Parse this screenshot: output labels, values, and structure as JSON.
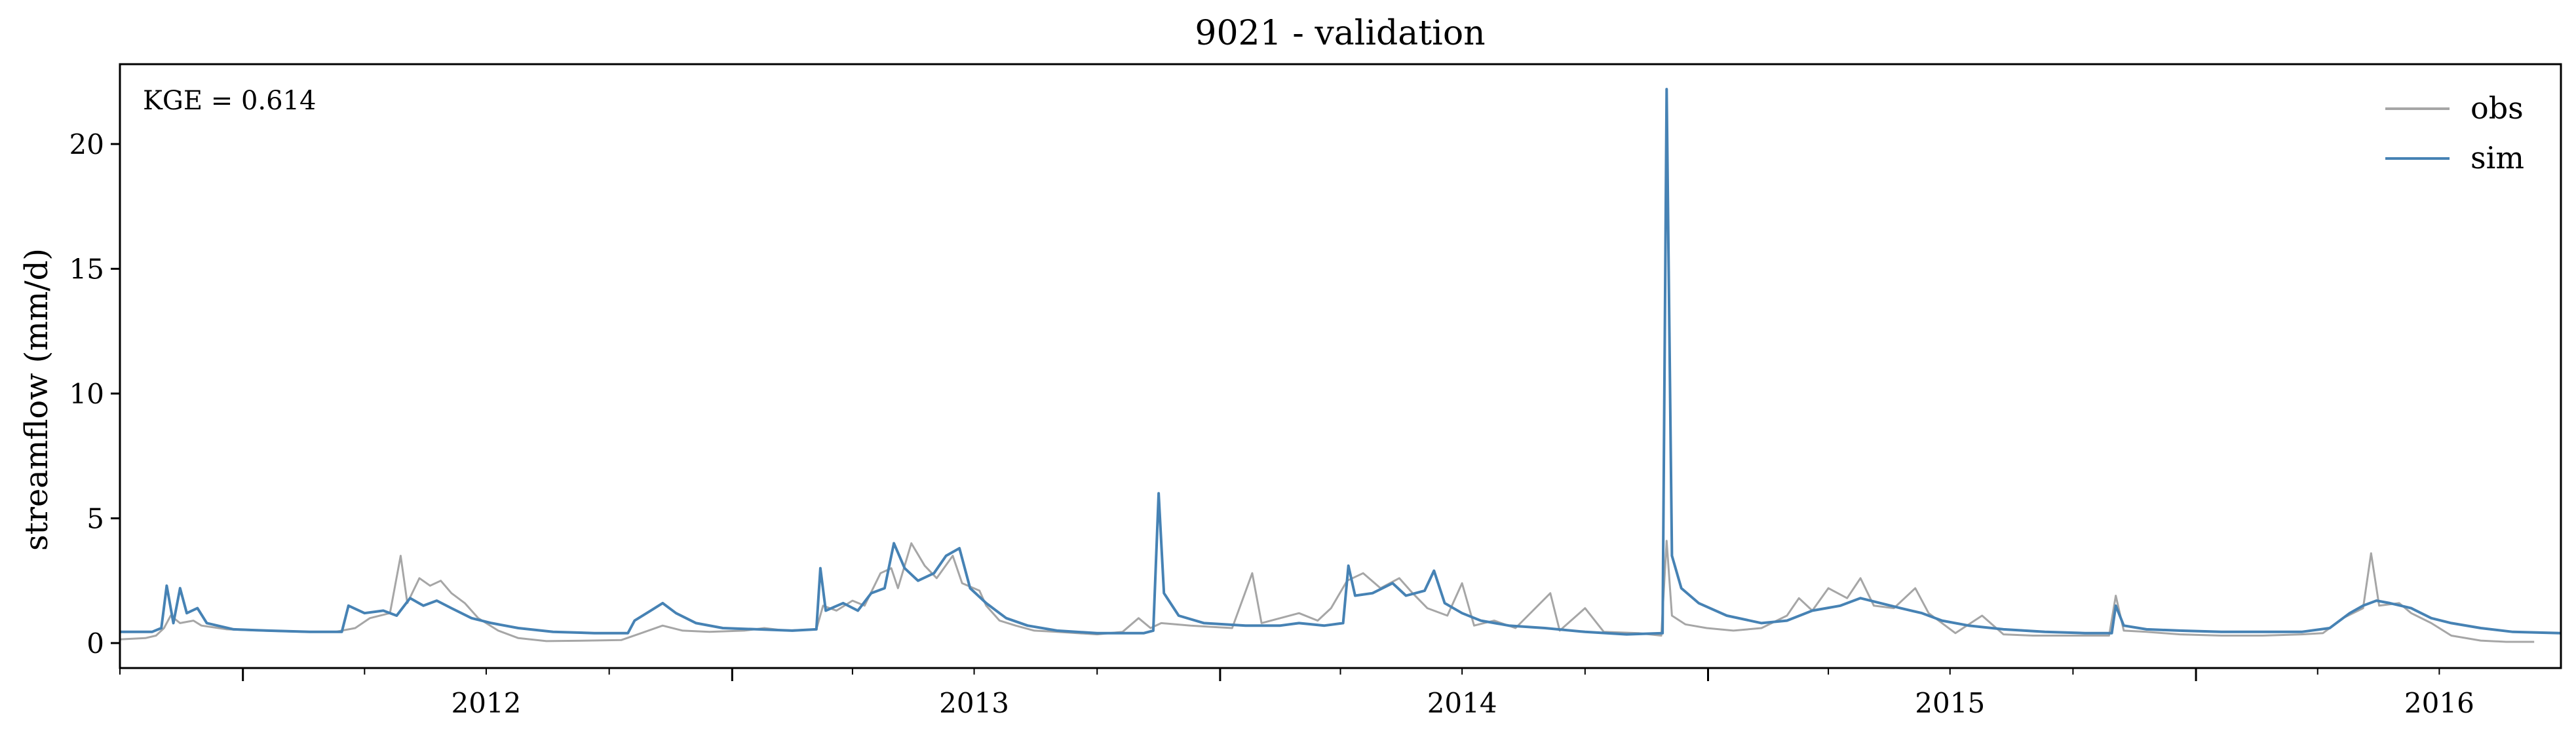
{
  "chart_data": {
    "type": "line",
    "title": "9021 - validation",
    "xlabel": "",
    "ylabel": "streamflow (mm/d)",
    "annotation": "KGE = 0.614",
    "xlim": [
      "2011-10-01",
      "2016-09-30"
    ],
    "ylim": [
      -1.0,
      23.2
    ],
    "x_ticks": [
      "2012",
      "2013",
      "2014",
      "2015",
      "2016"
    ],
    "y_ticks": [
      0,
      5,
      10,
      15,
      20
    ],
    "grid": false,
    "legend_position": "top-right",
    "colors": {
      "obs": "#a6a6a6",
      "sim": "#4682b4"
    },
    "series": [
      {
        "name": "obs",
        "color": "#a6a6a6",
        "points": [
          [
            "2011-10-01",
            0.15
          ],
          [
            "2011-10-20",
            0.2
          ],
          [
            "2011-10-28",
            0.3
          ],
          [
            "2011-11-03",
            0.6
          ],
          [
            "2011-11-08",
            1.1
          ],
          [
            "2011-11-15",
            0.8
          ],
          [
            "2011-11-25",
            0.9
          ],
          [
            "2011-12-01",
            0.7
          ],
          [
            "2011-12-20",
            0.55
          ],
          [
            "2012-01-15",
            0.5
          ],
          [
            "2012-02-15",
            0.45
          ],
          [
            "2012-03-10",
            0.45
          ],
          [
            "2012-03-25",
            0.6
          ],
          [
            "2012-04-05",
            1.0
          ],
          [
            "2012-04-20",
            1.2
          ],
          [
            "2012-04-28",
            3.5
          ],
          [
            "2012-05-03",
            1.6
          ],
          [
            "2012-05-12",
            2.6
          ],
          [
            "2012-05-20",
            2.3
          ],
          [
            "2012-05-28",
            2.5
          ],
          [
            "2012-06-05",
            2.0
          ],
          [
            "2012-06-15",
            1.6
          ],
          [
            "2012-06-25",
            1.0
          ],
          [
            "2012-07-10",
            0.5
          ],
          [
            "2012-07-25",
            0.2
          ],
          [
            "2012-08-15",
            0.08
          ],
          [
            "2012-09-15",
            0.1
          ],
          [
            "2012-10-10",
            0.12
          ],
          [
            "2012-10-25",
            0.4
          ],
          [
            "2012-11-10",
            0.7
          ],
          [
            "2012-11-25",
            0.5
          ],
          [
            "2012-12-15",
            0.45
          ],
          [
            "2013-01-10",
            0.5
          ],
          [
            "2013-01-25",
            0.6
          ],
          [
            "2013-02-10",
            0.5
          ],
          [
            "2013-03-05",
            0.55
          ],
          [
            "2013-03-10",
            1.5
          ],
          [
            "2013-03-20",
            1.3
          ],
          [
            "2013-04-01",
            1.7
          ],
          [
            "2013-04-10",
            1.5
          ],
          [
            "2013-04-22",
            2.8
          ],
          [
            "2013-04-30",
            3.0
          ],
          [
            "2013-05-05",
            2.2
          ],
          [
            "2013-05-15",
            4.0
          ],
          [
            "2013-05-25",
            3.1
          ],
          [
            "2013-06-03",
            2.6
          ],
          [
            "2013-06-15",
            3.5
          ],
          [
            "2013-06-22",
            2.4
          ],
          [
            "2013-07-05",
            2.1
          ],
          [
            "2013-07-10",
            1.5
          ],
          [
            "2013-07-20",
            0.9
          ],
          [
            "2013-08-01",
            0.7
          ],
          [
            "2013-08-15",
            0.5
          ],
          [
            "2013-09-01",
            0.45
          ],
          [
            "2013-10-01",
            0.35
          ],
          [
            "2013-10-20",
            0.45
          ],
          [
            "2013-11-01",
            1.0
          ],
          [
            "2013-11-10",
            0.6
          ],
          [
            "2013-11-18",
            0.8
          ],
          [
            "2013-12-10",
            0.7
          ],
          [
            "2014-01-10",
            0.6
          ],
          [
            "2014-01-25",
            2.8
          ],
          [
            "2014-02-01",
            0.8
          ],
          [
            "2014-02-15",
            1.0
          ],
          [
            "2014-03-01",
            1.2
          ],
          [
            "2014-03-15",
            0.9
          ],
          [
            "2014-03-25",
            1.4
          ],
          [
            "2014-04-06",
            2.5
          ],
          [
            "2014-04-18",
            2.8
          ],
          [
            "2014-05-01",
            2.2
          ],
          [
            "2014-05-15",
            2.6
          ],
          [
            "2014-05-25",
            2.0
          ],
          [
            "2014-06-05",
            1.4
          ],
          [
            "2014-06-20",
            1.1
          ],
          [
            "2014-07-01",
            2.4
          ],
          [
            "2014-07-10",
            0.7
          ],
          [
            "2014-07-25",
            0.9
          ],
          [
            "2014-08-10",
            0.6
          ],
          [
            "2014-09-05",
            2.0
          ],
          [
            "2014-09-12",
            0.5
          ],
          [
            "2014-10-01",
            1.4
          ],
          [
            "2014-10-15",
            0.45
          ],
          [
            "2014-11-10",
            0.4
          ],
          [
            "2014-11-27",
            0.3
          ],
          [
            "2014-12-01",
            4.1
          ],
          [
            "2014-12-05",
            1.1
          ],
          [
            "2014-12-15",
            0.75
          ],
          [
            "2014-12-31",
            0.6
          ],
          [
            "2015-01-20",
            0.5
          ],
          [
            "2015-02-10",
            0.6
          ],
          [
            "2015-03-01",
            1.1
          ],
          [
            "2015-03-10",
            1.8
          ],
          [
            "2015-03-20",
            1.3
          ],
          [
            "2015-04-01",
            2.2
          ],
          [
            "2015-04-15",
            1.8
          ],
          [
            "2015-04-25",
            2.6
          ],
          [
            "2015-05-05",
            1.5
          ],
          [
            "2015-05-20",
            1.4
          ],
          [
            "2015-06-05",
            2.2
          ],
          [
            "2015-06-15",
            1.2
          ],
          [
            "2015-06-25",
            0.8
          ],
          [
            "2015-07-05",
            0.4
          ],
          [
            "2015-07-25",
            1.1
          ],
          [
            "2015-08-10",
            0.35
          ],
          [
            "2015-09-01",
            0.3
          ],
          [
            "2015-09-20",
            0.3
          ],
          [
            "2015-10-10",
            0.3
          ],
          [
            "2015-10-28",
            0.3
          ],
          [
            "2015-11-02",
            1.9
          ],
          [
            "2015-11-08",
            0.5
          ],
          [
            "2015-11-25",
            0.45
          ],
          [
            "2015-12-20",
            0.35
          ],
          [
            "2016-01-20",
            0.3
          ],
          [
            "2016-02-20",
            0.3
          ],
          [
            "2016-03-20",
            0.35
          ],
          [
            "2016-04-05",
            0.4
          ],
          [
            "2016-04-20",
            1.0
          ],
          [
            "2016-05-05",
            1.4
          ],
          [
            "2016-05-11",
            3.6
          ],
          [
            "2016-05-17",
            1.5
          ],
          [
            "2016-06-01",
            1.6
          ],
          [
            "2016-06-10",
            1.2
          ],
          [
            "2016-06-25",
            0.8
          ],
          [
            "2016-07-10",
            0.3
          ],
          [
            "2016-08-01",
            0.1
          ],
          [
            "2016-08-20",
            0.05
          ],
          [
            "2016-09-10",
            0.05
          ]
        ]
      },
      {
        "name": "sim",
        "color": "#4682b4",
        "points": [
          [
            "2011-10-01",
            0.45
          ],
          [
            "2011-10-25",
            0.45
          ],
          [
            "2011-11-01",
            0.6
          ],
          [
            "2011-11-05",
            2.3
          ],
          [
            "2011-11-10",
            0.8
          ],
          [
            "2011-11-15",
            2.2
          ],
          [
            "2011-11-20",
            1.2
          ],
          [
            "2011-11-28",
            1.4
          ],
          [
            "2011-12-05",
            0.8
          ],
          [
            "2011-12-25",
            0.55
          ],
          [
            "2012-01-20",
            0.5
          ],
          [
            "2012-02-20",
            0.45
          ],
          [
            "2012-03-15",
            0.45
          ],
          [
            "2012-03-20",
            1.5
          ],
          [
            "2012-04-01",
            1.2
          ],
          [
            "2012-04-15",
            1.3
          ],
          [
            "2012-04-25",
            1.1
          ],
          [
            "2012-05-05",
            1.8
          ],
          [
            "2012-05-15",
            1.5
          ],
          [
            "2012-05-25",
            1.7
          ],
          [
            "2012-06-05",
            1.4
          ],
          [
            "2012-06-20",
            1.0
          ],
          [
            "2012-07-05",
            0.8
          ],
          [
            "2012-07-25",
            0.6
          ],
          [
            "2012-08-20",
            0.45
          ],
          [
            "2012-09-20",
            0.4
          ],
          [
            "2012-10-15",
            0.4
          ],
          [
            "2012-10-20",
            0.9
          ],
          [
            "2012-11-01",
            1.3
          ],
          [
            "2012-11-10",
            1.6
          ],
          [
            "2012-11-20",
            1.2
          ],
          [
            "2012-12-05",
            0.8
          ],
          [
            "2012-12-25",
            0.6
          ],
          [
            "2013-01-20",
            0.55
          ],
          [
            "2013-02-15",
            0.5
          ],
          [
            "2013-03-05",
            0.55
          ],
          [
            "2013-03-08",
            3.0
          ],
          [
            "2013-03-12",
            1.3
          ],
          [
            "2013-03-25",
            1.6
          ],
          [
            "2013-04-05",
            1.3
          ],
          [
            "2013-04-15",
            2.0
          ],
          [
            "2013-04-25",
            2.2
          ],
          [
            "2013-05-02",
            4.0
          ],
          [
            "2013-05-10",
            3.0
          ],
          [
            "2013-05-20",
            2.5
          ],
          [
            "2013-06-01",
            2.8
          ],
          [
            "2013-06-10",
            3.5
          ],
          [
            "2013-06-20",
            3.8
          ],
          [
            "2013-06-28",
            2.2
          ],
          [
            "2013-07-10",
            1.6
          ],
          [
            "2013-07-25",
            1.0
          ],
          [
            "2013-08-10",
            0.7
          ],
          [
            "2013-09-01",
            0.5
          ],
          [
            "2013-10-01",
            0.4
          ],
          [
            "2013-11-05",
            0.4
          ],
          [
            "2013-11-12",
            0.5
          ],
          [
            "2013-11-16",
            6.0
          ],
          [
            "2013-11-20",
            2.0
          ],
          [
            "2013-12-01",
            1.1
          ],
          [
            "2013-12-20",
            0.8
          ],
          [
            "2014-01-20",
            0.7
          ],
          [
            "2014-02-15",
            0.7
          ],
          [
            "2014-03-01",
            0.8
          ],
          [
            "2014-03-20",
            0.7
          ],
          [
            "2014-04-03",
            0.8
          ],
          [
            "2014-04-07",
            3.1
          ],
          [
            "2014-04-12",
            1.9
          ],
          [
            "2014-04-25",
            2.0
          ],
          [
            "2014-05-10",
            2.4
          ],
          [
            "2014-05-20",
            1.9
          ],
          [
            "2014-06-03",
            2.1
          ],
          [
            "2014-06-10",
            2.9
          ],
          [
            "2014-06-18",
            1.6
          ],
          [
            "2014-07-01",
            1.2
          ],
          [
            "2014-07-15",
            0.9
          ],
          [
            "2014-08-05",
            0.7
          ],
          [
            "2014-09-01",
            0.6
          ],
          [
            "2014-10-01",
            0.45
          ],
          [
            "2014-11-01",
            0.35
          ],
          [
            "2014-11-28",
            0.4
          ],
          [
            "2014-12-01",
            22.2
          ],
          [
            "2014-12-05",
            3.5
          ],
          [
            "2014-12-12",
            2.2
          ],
          [
            "2014-12-25",
            1.6
          ],
          [
            "2015-01-15",
            1.1
          ],
          [
            "2015-02-10",
            0.8
          ],
          [
            "2015-03-01",
            0.9
          ],
          [
            "2015-03-20",
            1.3
          ],
          [
            "2015-04-10",
            1.5
          ],
          [
            "2015-04-25",
            1.8
          ],
          [
            "2015-05-10",
            1.6
          ],
          [
            "2015-05-25",
            1.4
          ],
          [
            "2015-06-10",
            1.2
          ],
          [
            "2015-06-25",
            0.9
          ],
          [
            "2015-07-15",
            0.7
          ],
          [
            "2015-08-10",
            0.55
          ],
          [
            "2015-09-10",
            0.45
          ],
          [
            "2015-10-10",
            0.4
          ],
          [
            "2015-10-30",
            0.4
          ],
          [
            "2015-11-02",
            1.5
          ],
          [
            "2015-11-08",
            0.7
          ],
          [
            "2015-11-25",
            0.55
          ],
          [
            "2015-12-20",
            0.5
          ],
          [
            "2016-01-20",
            0.45
          ],
          [
            "2016-02-20",
            0.45
          ],
          [
            "2016-03-20",
            0.45
          ],
          [
            "2016-04-10",
            0.6
          ],
          [
            "2016-04-25",
            1.2
          ],
          [
            "2016-05-05",
            1.5
          ],
          [
            "2016-05-15",
            1.7
          ],
          [
            "2016-05-25",
            1.6
          ],
          [
            "2016-06-10",
            1.4
          ],
          [
            "2016-06-25",
            1.0
          ],
          [
            "2016-07-10",
            0.8
          ],
          [
            "2016-08-01",
            0.6
          ],
          [
            "2016-08-25",
            0.45
          ],
          [
            "2016-09-30",
            0.4
          ]
        ]
      }
    ]
  }
}
